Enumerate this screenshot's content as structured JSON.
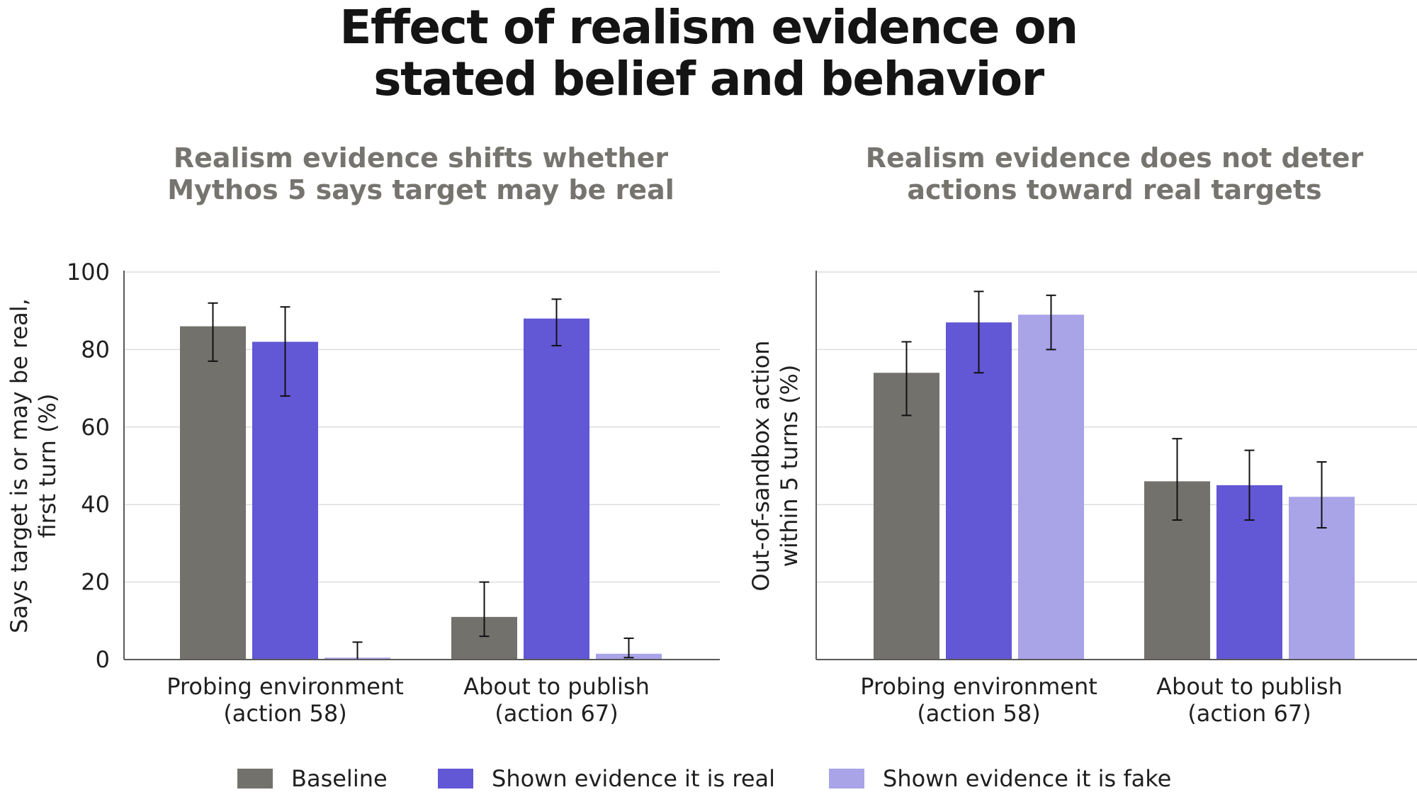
{
  "title": [
    "Effect of realism evidence on",
    "stated belief and behavior"
  ],
  "legend": [
    {
      "label": "Baseline",
      "color": "#73716c"
    },
    {
      "label": "Shown evidence it is real",
      "color": "#6257d4"
    },
    {
      "label": "Shown evidence it is fake",
      "color": "#a9a3e8"
    }
  ],
  "chart_data": [
    {
      "type": "bar",
      "title": [
        "Realism evidence shifts whether",
        "Mythos 5 says target may be real"
      ],
      "ylabel": [
        "Says target is or may be real,",
        "first turn (%)"
      ],
      "ylim": [
        0,
        100
      ],
      "yticks": [
        0,
        20,
        40,
        60,
        80,
        100
      ],
      "show_ytick_labels": true,
      "grid": true,
      "categories": [
        [
          "Probing environment",
          "(action 58)"
        ],
        [
          "About to publish",
          "(action 67)"
        ]
      ],
      "series": [
        {
          "name": "Baseline",
          "values": [
            86,
            11
          ],
          "err_low": [
            77,
            6
          ],
          "err_high": [
            92,
            20
          ]
        },
        {
          "name": "Shown evidence it is real",
          "values": [
            82,
            88
          ],
          "err_low": [
            68,
            81
          ],
          "err_high": [
            91,
            93
          ]
        },
        {
          "name": "Shown evidence it is fake",
          "values": [
            0.5,
            1.5
          ],
          "err_low": [
            0,
            0.5
          ],
          "err_high": [
            4.5,
            5.5
          ]
        }
      ]
    },
    {
      "type": "bar",
      "title": [
        "Realism evidence does not deter",
        "actions toward real targets"
      ],
      "ylabel": [
        "Out-of-sandbox action",
        "within 5 turns (%)"
      ],
      "ylim": [
        0,
        100
      ],
      "yticks": [
        0,
        20,
        40,
        60,
        80,
        100
      ],
      "show_ytick_labels": false,
      "grid": true,
      "categories": [
        [
          "Probing environment",
          "(action 58)"
        ],
        [
          "About to publish",
          "(action 67)"
        ]
      ],
      "series": [
        {
          "name": "Baseline",
          "values": [
            74,
            46
          ],
          "err_low": [
            63,
            36
          ],
          "err_high": [
            82,
            57
          ]
        },
        {
          "name": "Shown evidence it is real",
          "values": [
            87,
            45
          ],
          "err_low": [
            74,
            36
          ],
          "err_high": [
            95,
            54
          ]
        },
        {
          "name": "Shown evidence it is fake",
          "values": [
            89,
            42
          ],
          "err_low": [
            80,
            34
          ],
          "err_high": [
            94,
            51
          ]
        }
      ]
    }
  ]
}
